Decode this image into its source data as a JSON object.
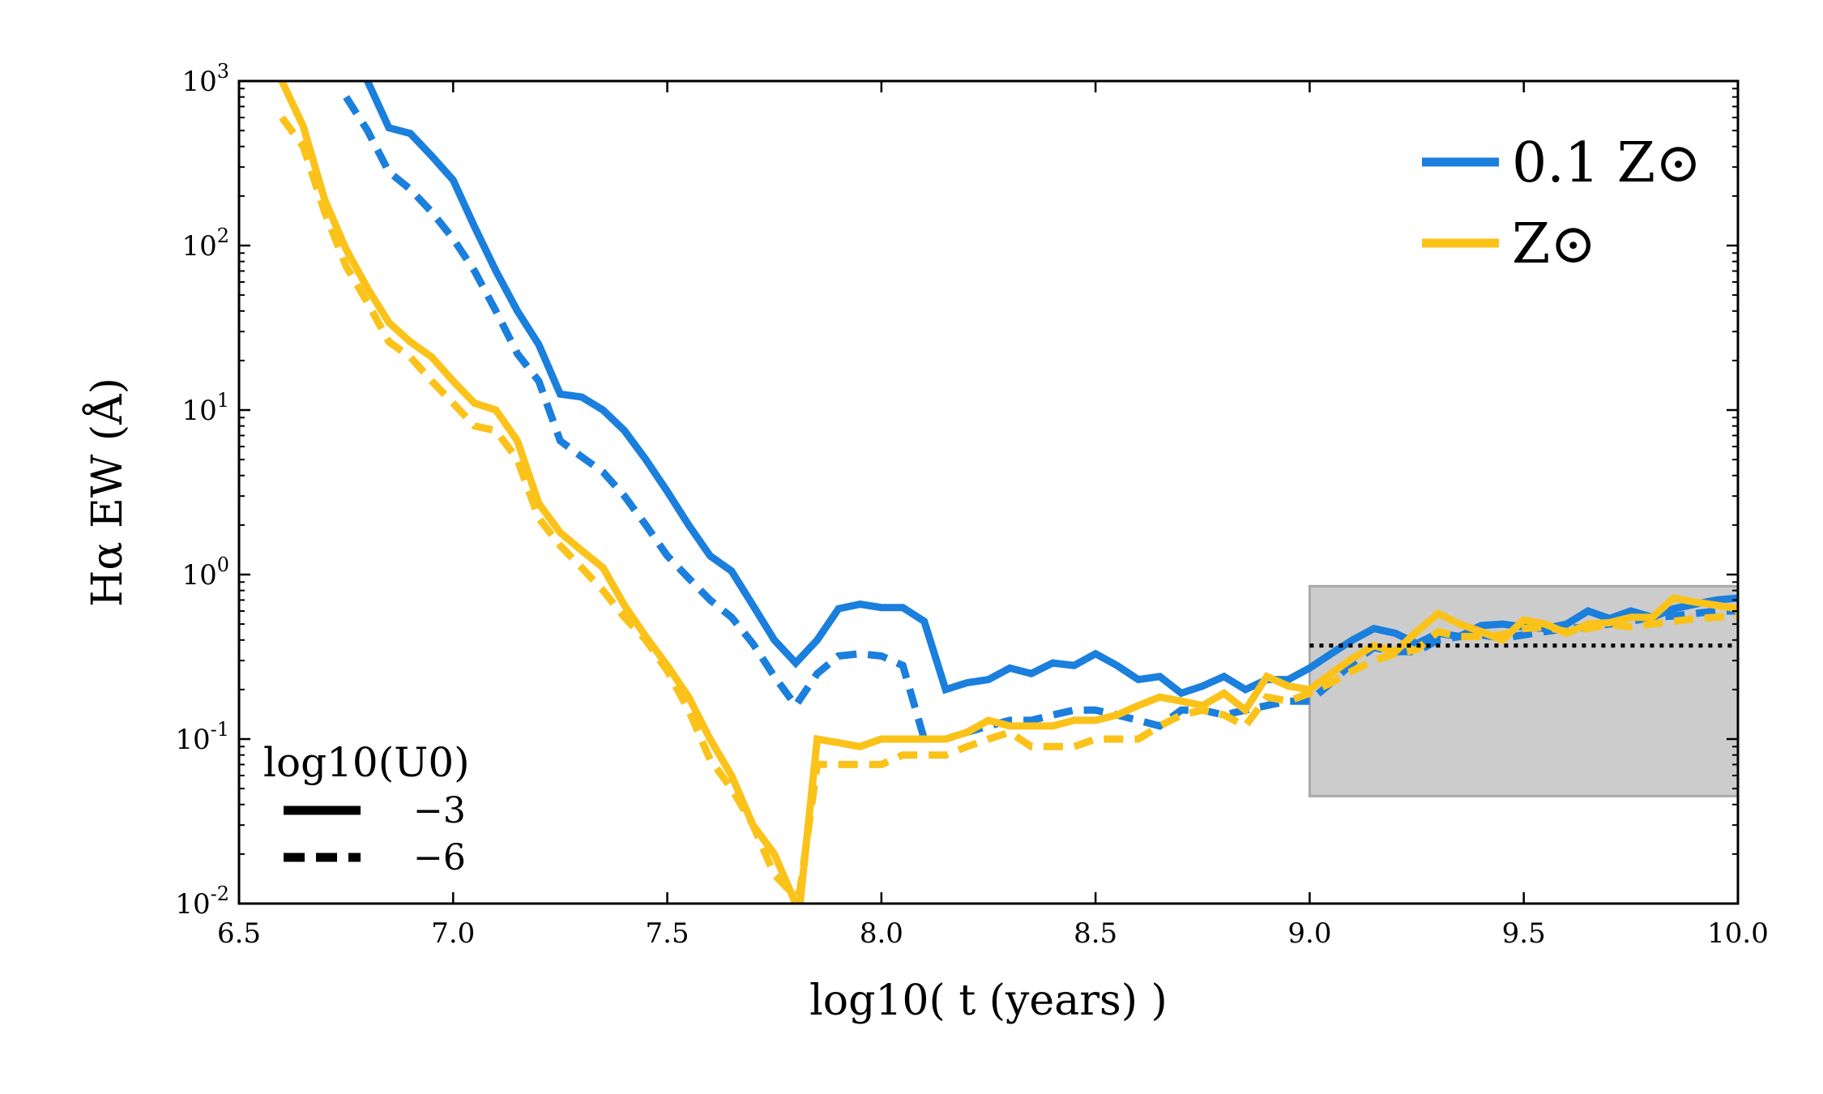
{
  "chart_data": {
    "type": "line",
    "xlabel": "log10( t (years) )",
    "ylabel": "Hα EW (Å)",
    "xlim": [
      6.5,
      10.0
    ],
    "ylim": [
      0.01,
      1000
    ],
    "yscale": "log",
    "x_ticks": [
      "6.5",
      "7.0",
      "7.5",
      "8.0",
      "8.5",
      "9.0",
      "9.5",
      "10.0"
    ],
    "y_ticks": [
      {
        "base": "10",
        "exp": "-2"
      },
      {
        "base": "10",
        "exp": "-1"
      },
      {
        "base": "10",
        "exp": "0"
      },
      {
        "base": "10",
        "exp": "1"
      },
      {
        "base": "10",
        "exp": "2"
      },
      {
        "base": "10",
        "exp": "3"
      }
    ],
    "metallicity_legend": [
      {
        "label": "0.1 Z⊙",
        "color": "#1a7fdd"
      },
      {
        "label": "Z⊙",
        "color": "#fbc21a"
      }
    ],
    "linestyle_legend": {
      "title": "log10(U0)",
      "entries": [
        {
          "label": "−3",
          "style": "solid"
        },
        {
          "label": "−6",
          "style": "dashed"
        }
      ]
    },
    "shaded_region": {
      "x": [
        9.0,
        10.0
      ],
      "y": [
        0.045,
        0.85
      ],
      "color": "#cccccc"
    },
    "reference_line": {
      "x": [
        9.0,
        10.0
      ],
      "y": 0.37,
      "style": "dotted",
      "color": "#000000"
    },
    "series": [
      {
        "color": "#1a7fdd",
        "style": "solid",
        "x": [
          6.8,
          6.85,
          6.9,
          6.95,
          7.0,
          7.05,
          7.1,
          7.15,
          7.2,
          7.25,
          7.3,
          7.35,
          7.4,
          7.45,
          7.5,
          7.55,
          7.6,
          7.65,
          7.7,
          7.75,
          7.8,
          7.85,
          7.9,
          7.95,
          8.0,
          8.05,
          8.1,
          8.15,
          8.2,
          8.25,
          8.3,
          8.35,
          8.4,
          8.45,
          8.5,
          8.55,
          8.6,
          8.65,
          8.7,
          8.75,
          8.8,
          8.85,
          8.9,
          8.95,
          9.0,
          9.05,
          9.1,
          9.15,
          9.2,
          9.25,
          9.3,
          9.35,
          9.4,
          9.45,
          9.5,
          9.55,
          9.6,
          9.65,
          9.7,
          9.75,
          9.8,
          9.85,
          9.9,
          9.95,
          10.0
        ],
        "y": [
          1000,
          520,
          480,
          350,
          250,
          130,
          70,
          40,
          25,
          12.5,
          12,
          10,
          7.5,
          5,
          3.2,
          2,
          1.3,
          1.05,
          0.65,
          0.4,
          0.29,
          0.4,
          0.62,
          0.66,
          0.63,
          0.63,
          0.52,
          0.2,
          0.22,
          0.23,
          0.27,
          0.25,
          0.29,
          0.28,
          0.33,
          0.28,
          0.23,
          0.24,
          0.19,
          0.21,
          0.24,
          0.2,
          0.23,
          0.23,
          0.27,
          0.33,
          0.4,
          0.47,
          0.44,
          0.38,
          0.44,
          0.42,
          0.49,
          0.5,
          0.48,
          0.47,
          0.5,
          0.6,
          0.54,
          0.6,
          0.55,
          0.62,
          0.66,
          0.7,
          0.72
        ]
      },
      {
        "color": "#1a7fdd",
        "style": "dashed",
        "x": [
          6.75,
          6.8,
          6.85,
          6.9,
          6.95,
          7.0,
          7.05,
          7.1,
          7.15,
          7.2,
          7.25,
          7.3,
          7.35,
          7.4,
          7.45,
          7.5,
          7.55,
          7.6,
          7.65,
          7.7,
          7.75,
          7.8,
          7.85,
          7.9,
          7.95,
          8.0,
          8.05,
          8.1,
          8.15,
          8.2,
          8.25,
          8.3,
          8.35,
          8.4,
          8.45,
          8.5,
          8.55,
          8.6,
          8.65,
          8.7,
          8.75,
          8.8,
          8.85,
          8.9,
          8.95,
          9.0,
          9.05,
          9.1,
          9.15,
          9.2,
          9.25,
          9.3,
          9.35,
          9.4,
          9.45,
          9.5,
          9.55,
          9.6,
          9.65,
          9.7,
          9.75,
          9.8,
          9.85,
          9.9,
          9.95,
          10.0
        ],
        "y": [
          800,
          500,
          280,
          220,
          160,
          110,
          70,
          40,
          22,
          15,
          6.5,
          5.2,
          4.2,
          3,
          2,
          1.3,
          0.95,
          0.7,
          0.55,
          0.38,
          0.24,
          0.16,
          0.25,
          0.32,
          0.33,
          0.32,
          0.28,
          0.1,
          0.1,
          0.11,
          0.12,
          0.13,
          0.13,
          0.14,
          0.15,
          0.15,
          0.14,
          0.13,
          0.12,
          0.15,
          0.15,
          0.14,
          0.15,
          0.16,
          0.17,
          0.17,
          0.22,
          0.29,
          0.36,
          0.34,
          0.34,
          0.4,
          0.42,
          0.43,
          0.41,
          0.43,
          0.45,
          0.47,
          0.48,
          0.5,
          0.52,
          0.55,
          0.56,
          0.58,
          0.6,
          0.6
        ]
      },
      {
        "color": "#fbc21a",
        "style": "solid",
        "x": [
          6.6,
          6.65,
          6.7,
          6.75,
          6.8,
          6.85,
          6.9,
          6.95,
          7.0,
          7.05,
          7.1,
          7.15,
          7.2,
          7.25,
          7.3,
          7.35,
          7.4,
          7.45,
          7.5,
          7.55,
          7.6,
          7.65,
          7.7,
          7.75,
          7.8,
          7.81,
          7.85,
          7.9,
          7.95,
          8.0,
          8.05,
          8.1,
          8.15,
          8.2,
          8.25,
          8.3,
          8.35,
          8.4,
          8.45,
          8.5,
          8.55,
          8.6,
          8.65,
          8.7,
          8.75,
          8.8,
          8.85,
          8.9,
          8.95,
          9.0,
          9.05,
          9.1,
          9.15,
          9.2,
          9.25,
          9.3,
          9.35,
          9.4,
          9.45,
          9.5,
          9.55,
          9.6,
          9.65,
          9.7,
          9.75,
          9.8,
          9.85,
          9.9,
          9.95,
          10.0
        ],
        "y": [
          1000,
          530,
          190,
          95,
          55,
          34,
          26,
          21,
          15,
          11,
          10,
          6.5,
          2.7,
          1.8,
          1.4,
          1.1,
          0.65,
          0.42,
          0.28,
          0.18,
          0.1,
          0.06,
          0.03,
          0.02,
          0.01,
          0.01,
          0.1,
          0.095,
          0.09,
          0.1,
          0.1,
          0.1,
          0.1,
          0.11,
          0.13,
          0.12,
          0.12,
          0.12,
          0.13,
          0.13,
          0.14,
          0.16,
          0.18,
          0.17,
          0.16,
          0.19,
          0.15,
          0.24,
          0.21,
          0.2,
          0.25,
          0.31,
          0.37,
          0.34,
          0.45,
          0.58,
          0.5,
          0.45,
          0.4,
          0.53,
          0.5,
          0.44,
          0.5,
          0.51,
          0.55,
          0.55,
          0.72,
          0.68,
          0.65,
          0.62
        ]
      },
      {
        "color": "#fbc21a",
        "style": "dashed",
        "x": [
          6.6,
          6.65,
          6.7,
          6.75,
          6.8,
          6.85,
          6.9,
          6.95,
          7.0,
          7.05,
          7.1,
          7.15,
          7.2,
          7.25,
          7.3,
          7.35,
          7.4,
          7.45,
          7.5,
          7.55,
          7.6,
          7.65,
          7.7,
          7.75,
          7.8,
          7.81,
          7.85,
          7.9,
          7.95,
          8.0,
          8.05,
          8.1,
          8.15,
          8.2,
          8.25,
          8.3,
          8.35,
          8.4,
          8.45,
          8.5,
          8.55,
          8.6,
          8.65,
          8.7,
          8.75,
          8.8,
          8.85,
          8.9,
          8.95,
          9.0,
          9.05,
          9.1,
          9.15,
          9.2,
          9.25,
          9.3,
          9.35,
          9.4,
          9.45,
          9.5,
          9.55,
          9.6,
          9.65,
          9.7,
          9.75,
          9.8,
          9.85,
          9.9,
          9.95,
          10.0
        ],
        "y": [
          600,
          400,
          160,
          75,
          45,
          26,
          21,
          15,
          11,
          8,
          7.5,
          5,
          2.2,
          1.5,
          1.1,
          0.8,
          0.55,
          0.4,
          0.26,
          0.15,
          0.075,
          0.05,
          0.03,
          0.015,
          0.011,
          0.012,
          0.07,
          0.07,
          0.07,
          0.07,
          0.08,
          0.08,
          0.08,
          0.09,
          0.1,
          0.11,
          0.09,
          0.09,
          0.09,
          0.1,
          0.1,
          0.1,
          0.12,
          0.14,
          0.15,
          0.14,
          0.12,
          0.18,
          0.17,
          0.19,
          0.22,
          0.26,
          0.3,
          0.33,
          0.35,
          0.45,
          0.42,
          0.42,
          0.43,
          0.47,
          0.48,
          0.45,
          0.47,
          0.5,
          0.48,
          0.5,
          0.52,
          0.54,
          0.55,
          0.56
        ]
      }
    ]
  }
}
